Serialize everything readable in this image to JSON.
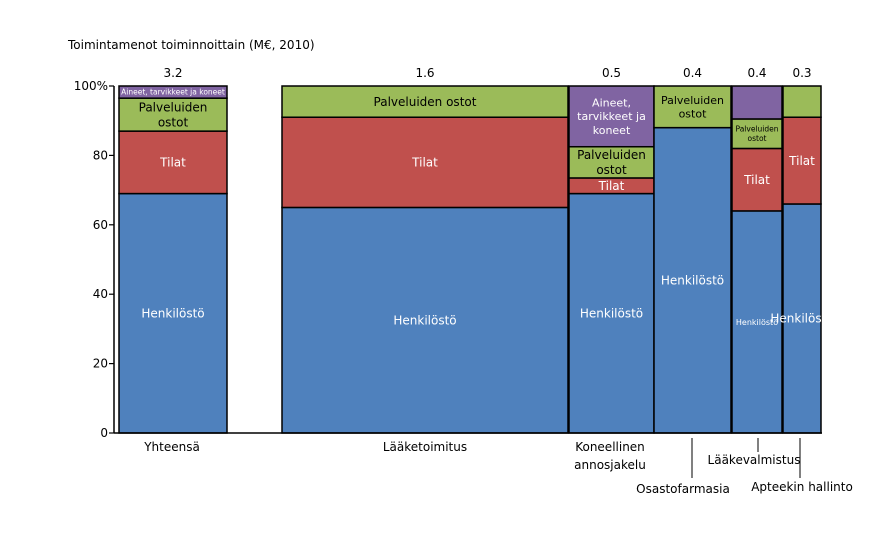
{
  "chart_data": {
    "type": "bar",
    "variant": "marimekko",
    "title": "Toimintamenot toiminnoittain (M€, 2010)",
    "ylim": [
      0,
      100
    ],
    "y_ticks": [
      "0",
      "20",
      "40",
      "60",
      "80",
      "100%"
    ],
    "y_tick_values": [
      0,
      20,
      40,
      60,
      80,
      100
    ],
    "colors": {
      "Henkilöstö": "#4f81bd",
      "Tilat": "#c0504d",
      "Palveluiden ostot": "#9bbb59",
      "Aineet, tarvikkeet ja koneet": "#8064a2"
    },
    "segment_labels": {
      "Henkilöstö": "Henkilöstö",
      "Tilat": "Tilat",
      "Palveluiden ostot": "Palveluiden ostot",
      "Aineet, tarvikkeet ja koneet": "Aineet, tarvikkeet ja koneet"
    },
    "columns": [
      {
        "category": "Yhteensä",
        "total_label": "3.2",
        "total": 3.2,
        "segments": [
          {
            "name": "Henkilöstö",
            "value": 69
          },
          {
            "name": "Tilat",
            "value": 18
          },
          {
            "name": "Palveluiden ostot",
            "value": 9.5
          },
          {
            "name": "Aineet, tarvikkeet ja koneet",
            "value": 3.5
          }
        ]
      },
      {
        "category": "Lääketoimitus",
        "total_label": "1.6",
        "total": 1.6,
        "segments": [
          {
            "name": "Henkilöstö",
            "value": 65
          },
          {
            "name": "Tilat",
            "value": 26
          },
          {
            "name": "Palveluiden ostot",
            "value": 9
          }
        ]
      },
      {
        "category": "Koneellinen annosjakelu",
        "total_label": "0.5",
        "total": 0.5,
        "segments": [
          {
            "name": "Henkilöstö",
            "value": 69
          },
          {
            "name": "Tilat",
            "value": 4.5
          },
          {
            "name": "Palveluiden ostot",
            "value": 9
          },
          {
            "name": "Aineet, tarvikkeet ja koneet",
            "value": 17.5
          }
        ]
      },
      {
        "category": "Osastofarmasia",
        "total_label": "0.4",
        "total": 0.4,
        "segments": [
          {
            "name": "Henkilöstö",
            "value": 88
          },
          {
            "name": "Palveluiden ostot",
            "value": 12
          }
        ]
      },
      {
        "category": "Lääkevalmistus",
        "total_label": "0.4",
        "total": 0.4,
        "segments": [
          {
            "name": "Henkilöstö",
            "value": 64
          },
          {
            "name": "Tilat",
            "value": 18
          },
          {
            "name": "Palveluiden ostot",
            "value": 8.5
          },
          {
            "name": "Aineet, tarvikkeet ja koneet",
            "value": 9.5
          }
        ]
      },
      {
        "category": "Apteekin hallinto",
        "total_label": "0.3",
        "total": 0.3,
        "segments": [
          {
            "name": "Henkilöstö",
            "value": 66
          },
          {
            "name": "Tilat",
            "value": 25
          },
          {
            "name": "Palveluiden ostot",
            "value": 9
          }
        ]
      }
    ]
  }
}
